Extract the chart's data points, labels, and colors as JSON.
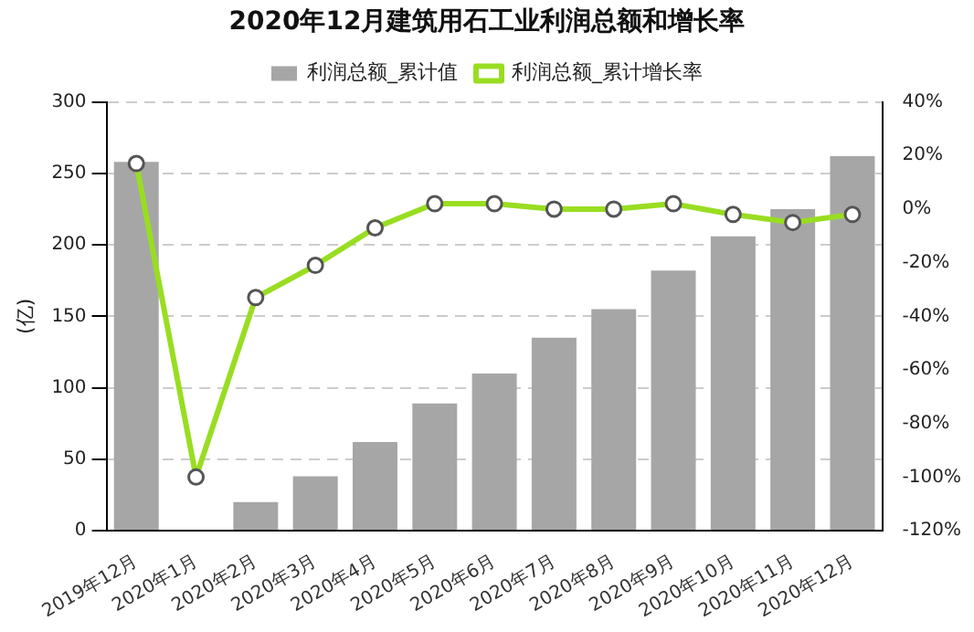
{
  "chart_data": {
    "type": "bar",
    "title": "2020年12月建筑用石工业利润总额和增长率",
    "ylabel": "(亿)",
    "categories": [
      "2019年12月",
      "2020年1月",
      "2020年2月",
      "2020年3月",
      "2020年4月",
      "2020年5月",
      "2020年6月",
      "2020年7月",
      "2020年8月",
      "2020年9月",
      "2020年10月",
      "2020年11月",
      "2020年12月"
    ],
    "series": [
      {
        "name": "利润总额_累计值",
        "color": "#a6a6a6",
        "values": [
          258,
          null,
          20,
          38,
          62,
          89,
          110,
          135,
          155,
          182,
          206,
          225,
          262
        ]
      },
      {
        "name": "利润总额_累计增长率",
        "type": "line",
        "axis": "y2",
        "color": "#99dd22",
        "marker": "circle",
        "values": [
          17,
          -100,
          -33,
          -21,
          -7,
          2,
          2,
          0,
          0,
          2,
          -2,
          -5,
          -2
        ]
      }
    ],
    "ylim": [
      0,
      300
    ],
    "yticks": [
      0,
      50,
      100,
      150,
      200,
      250,
      300
    ],
    "y2lim": [
      -120,
      40
    ],
    "y2ticks": [
      {
        "value": -120,
        "label": "-120%"
      },
      {
        "value": -100,
        "label": "-100%"
      },
      {
        "value": -80,
        "label": "-80%"
      },
      {
        "value": -60,
        "label": "-60%"
      },
      {
        "value": -40,
        "label": "-40%"
      },
      {
        "value": -20,
        "label": "-20%"
      },
      {
        "value": 0,
        "label": "0%"
      },
      {
        "value": 20,
        "label": "20%"
      },
      {
        "value": 40,
        "label": "40%"
      }
    ],
    "grid": "y",
    "legend": "top"
  }
}
